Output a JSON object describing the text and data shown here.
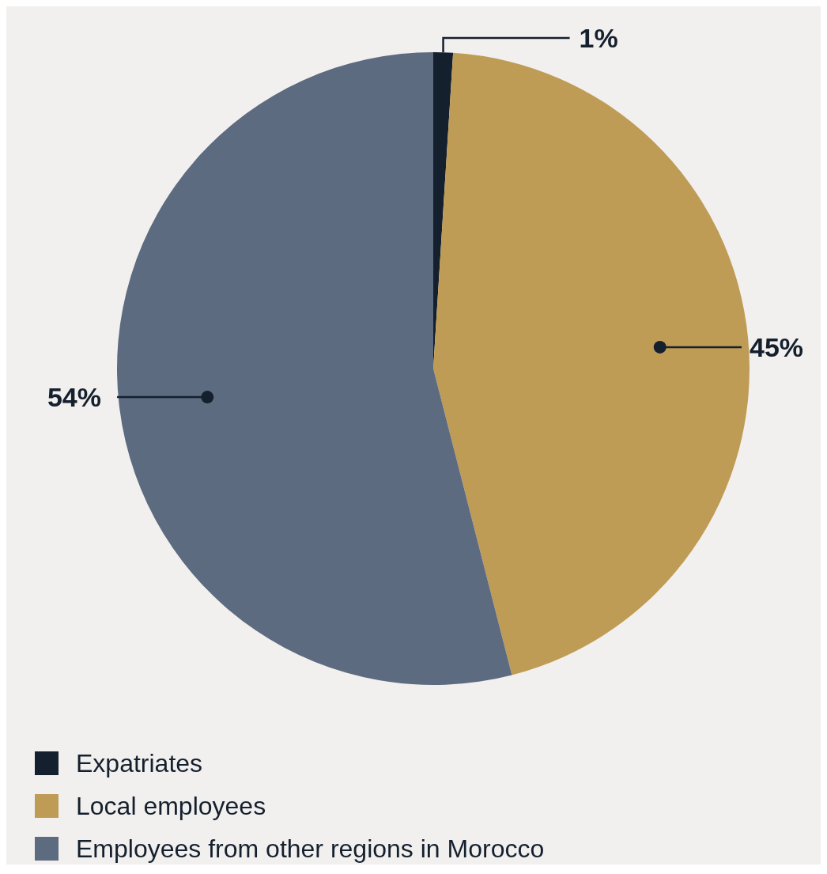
{
  "chart_data": {
    "type": "pie",
    "categories": [
      "Expatriates",
      "Local employees",
      "Employees from other regions in Morocco"
    ],
    "values": [
      1,
      45,
      54
    ],
    "colors": [
      "#14202e",
      "#bf9c56",
      "#5d6b80"
    ],
    "value_labels": [
      "1%",
      "45%",
      "54%"
    ],
    "legend": "bottom"
  }
}
